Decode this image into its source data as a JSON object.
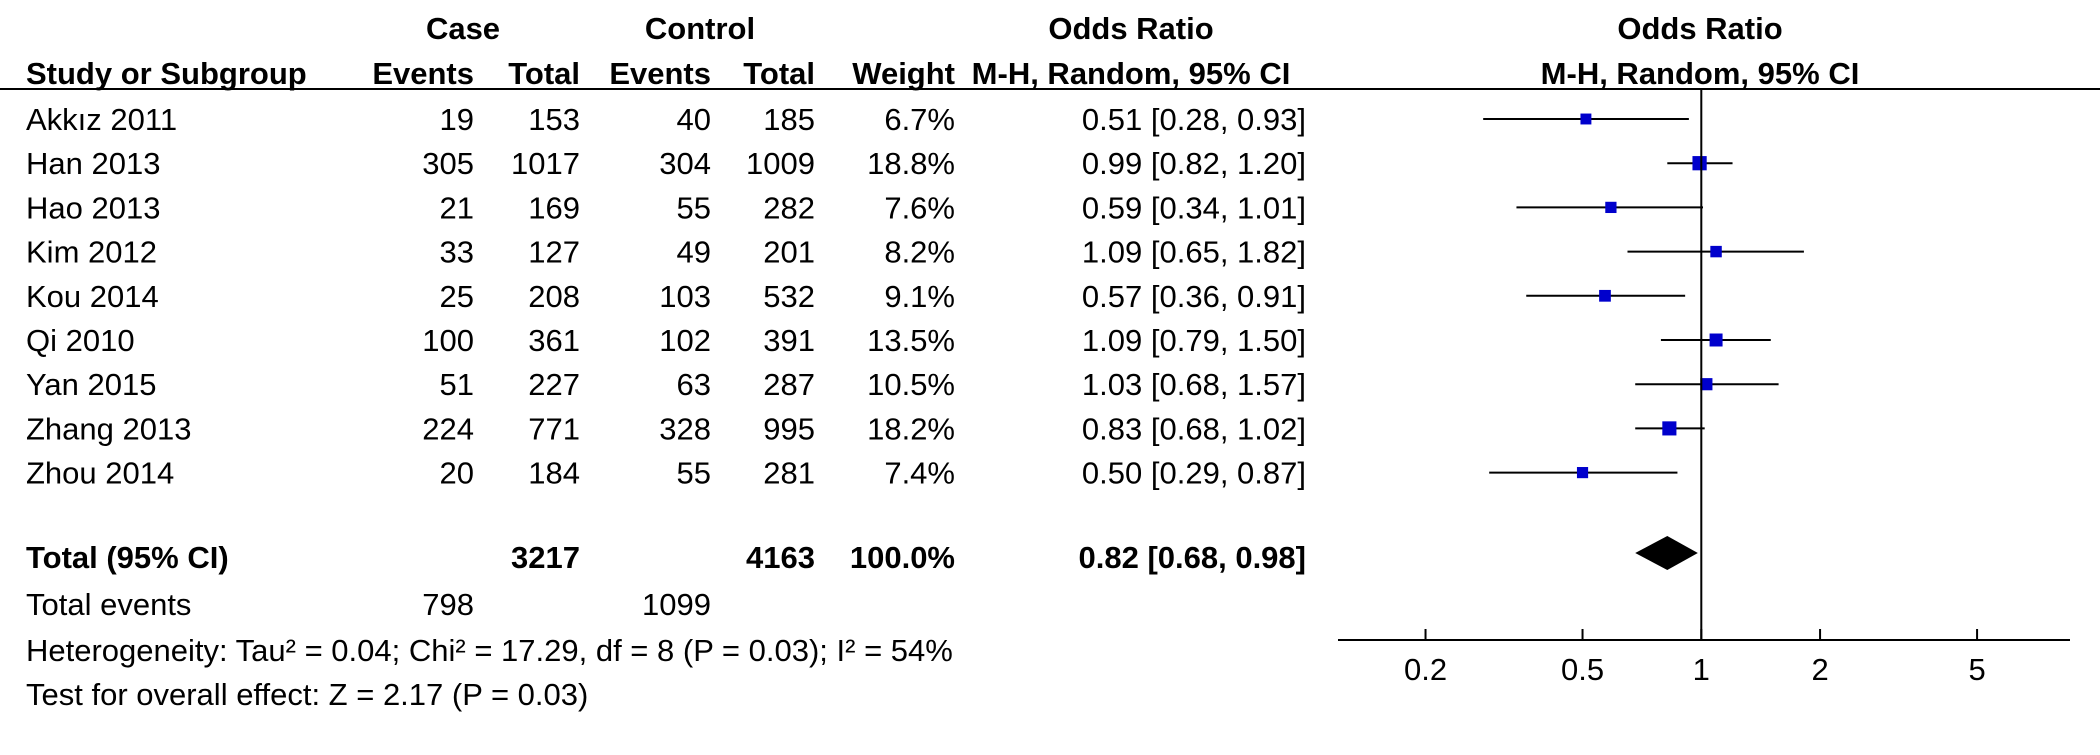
{
  "header": {
    "group_case": "Case",
    "group_control": "Control",
    "or_title_table": "Odds Ratio",
    "or_title_plot": "Odds Ratio",
    "col_study": "Study or Subgroup",
    "col_case_events": "Events",
    "col_case_total": "Total",
    "col_ctrl_events": "Events",
    "col_ctrl_total": "Total",
    "col_weight": "Weight",
    "col_method_table": "M-H, Random, 95% CI",
    "col_method_plot": "M-H, Random, 95% CI"
  },
  "chart_data": {
    "type": "forest",
    "x_scale": "log",
    "x_ticks": [
      0.2,
      0.5,
      1,
      2,
      5
    ],
    "x_tick_labels": [
      "0.2",
      "0.5",
      "1",
      "2",
      "5"
    ],
    "xlim": [
      0.12,
      8.6
    ],
    "reference_line": 1,
    "studies": [
      {
        "name": "Akkız 2011",
        "case_events": "19",
        "case_total": "153",
        "ctrl_events": "40",
        "ctrl_total": "185",
        "weight": "6.7%",
        "ci_text": "0.51 [0.28, 0.93]",
        "or": 0.51,
        "lo": 0.28,
        "hi": 0.93,
        "w": 6.7
      },
      {
        "name": "Han 2013",
        "case_events": "305",
        "case_total": "1017",
        "ctrl_events": "304",
        "ctrl_total": "1009",
        "weight": "18.8%",
        "ci_text": "0.99 [0.82, 1.20]",
        "or": 0.99,
        "lo": 0.82,
        "hi": 1.2,
        "w": 18.8
      },
      {
        "name": "Hao 2013",
        "case_events": "21",
        "case_total": "169",
        "ctrl_events": "55",
        "ctrl_total": "282",
        "weight": "7.6%",
        "ci_text": "0.59 [0.34, 1.01]",
        "or": 0.59,
        "lo": 0.34,
        "hi": 1.01,
        "w": 7.6
      },
      {
        "name": "Kim 2012",
        "case_events": "33",
        "case_total": "127",
        "ctrl_events": "49",
        "ctrl_total": "201",
        "weight": "8.2%",
        "ci_text": "1.09 [0.65, 1.82]",
        "or": 1.09,
        "lo": 0.65,
        "hi": 1.82,
        "w": 8.2
      },
      {
        "name": "Kou 2014",
        "case_events": "25",
        "case_total": "208",
        "ctrl_events": "103",
        "ctrl_total": "532",
        "weight": "9.1%",
        "ci_text": "0.57 [0.36, 0.91]",
        "or": 0.57,
        "lo": 0.36,
        "hi": 0.91,
        "w": 9.1
      },
      {
        "name": "Qi 2010",
        "case_events": "100",
        "case_total": "361",
        "ctrl_events": "102",
        "ctrl_total": "391",
        "weight": "13.5%",
        "ci_text": "1.09 [0.79, 1.50]",
        "or": 1.09,
        "lo": 0.79,
        "hi": 1.5,
        "w": 13.5
      },
      {
        "name": "Yan 2015",
        "case_events": "51",
        "case_total": "227",
        "ctrl_events": "63",
        "ctrl_total": "287",
        "weight": "10.5%",
        "ci_text": "1.03 [0.68, 1.57]",
        "or": 1.03,
        "lo": 0.68,
        "hi": 1.57,
        "w": 10.5
      },
      {
        "name": "Zhang 2013",
        "case_events": "224",
        "case_total": "771",
        "ctrl_events": "328",
        "ctrl_total": "995",
        "weight": "18.2%",
        "ci_text": "0.83 [0.68, 1.02]",
        "or": 0.83,
        "lo": 0.68,
        "hi": 1.02,
        "w": 18.2
      },
      {
        "name": "Zhou 2014",
        "case_events": "20",
        "case_total": "184",
        "ctrl_events": "55",
        "ctrl_total": "281",
        "weight": "7.4%",
        "ci_text": "0.50 [0.29, 0.87]",
        "or": 0.5,
        "lo": 0.29,
        "hi": 0.87,
        "w": 7.4
      }
    ],
    "total": {
      "label": "Total (95% CI)",
      "case_total": "3217",
      "ctrl_total": "4163",
      "weight": "100.0%",
      "ci_text": "0.82 [0.68, 0.98]",
      "or": 0.82,
      "lo": 0.68,
      "hi": 0.98
    },
    "total_events": {
      "label": "Total events",
      "case_events": "798",
      "ctrl_events": "1099"
    },
    "heterogeneity": "Heterogeneity: Tau² = 0.04; Chi² = 17.29, df = 8 (P = 0.03); I² = 54%",
    "overall_effect": "Test for overall effect: Z = 2.17 (P = 0.03)",
    "colors": {
      "marker": "#0000cc",
      "line": "#000000",
      "diamond": "#000000"
    }
  }
}
